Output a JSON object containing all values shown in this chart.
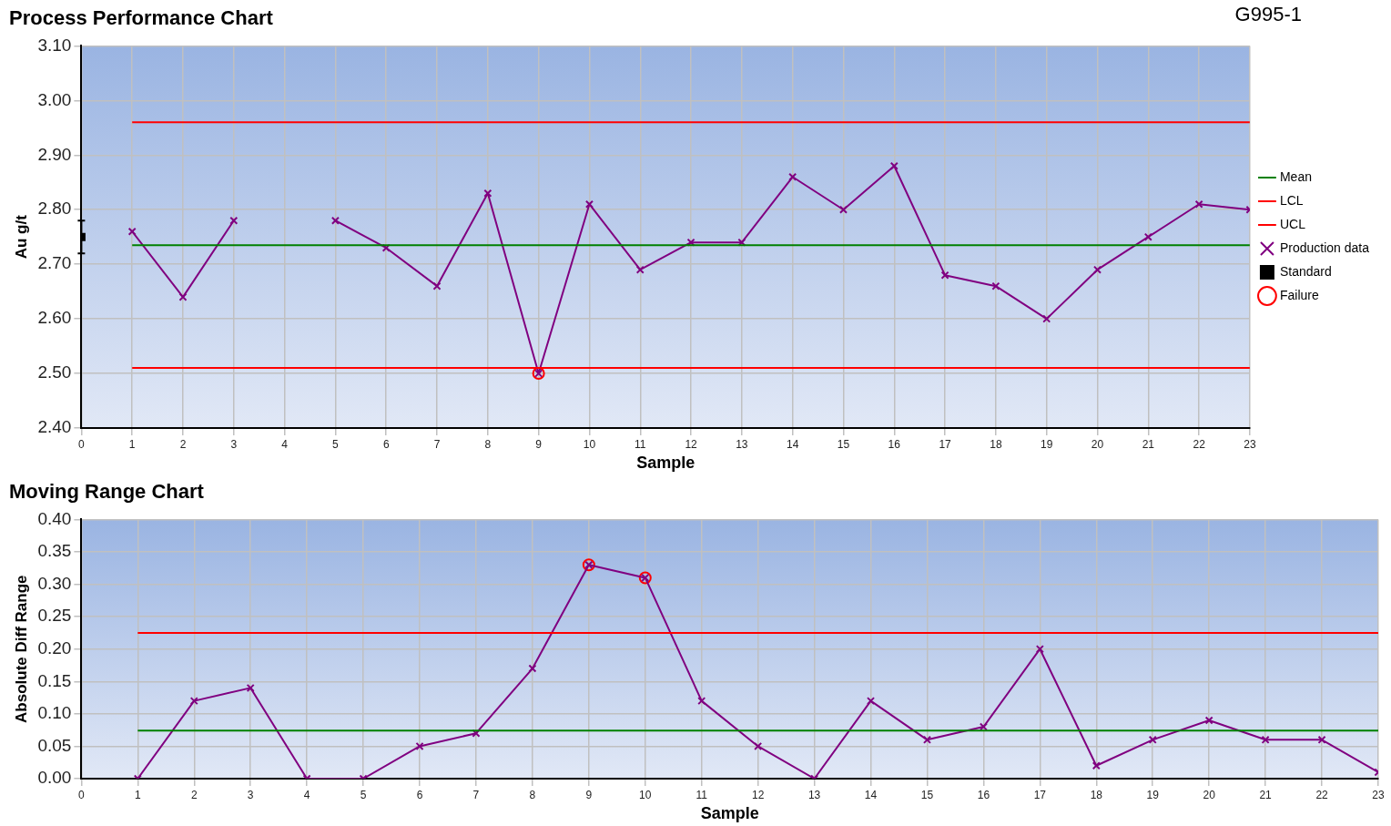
{
  "chart_data": [
    {
      "type": "line",
      "title": "Process Performance Chart",
      "annotations": [
        "G995-1"
      ],
      "xlabel": "Sample",
      "ylabel": "Au g/t",
      "xlim": [
        0,
        23
      ],
      "xticks": [
        0,
        1,
        2,
        3,
        4,
        5,
        6,
        7,
        8,
        9,
        10,
        11,
        12,
        13,
        14,
        15,
        16,
        17,
        18,
        19,
        20,
        21,
        22,
        23
      ],
      "ylim": [
        2.4,
        3.1
      ],
      "yticks": [
        {
          "value": 2.4,
          "label": "2.40"
        },
        {
          "value": 2.5,
          "label": "2.50"
        },
        {
          "value": 2.6,
          "label": "2.60"
        },
        {
          "value": 2.7,
          "label": "2.70"
        },
        {
          "value": 2.8,
          "label": "2.80"
        },
        {
          "value": 2.9,
          "label": "2.90"
        },
        {
          "value": 3.0,
          "label": "3.00"
        },
        {
          "value": 3.1,
          "label": "3.10"
        }
      ],
      "grid": true,
      "legend": "right",
      "series": [
        {
          "name": "Mean",
          "type": "line",
          "color": "#008000",
          "marker": "none",
          "x": [
            1,
            23
          ],
          "values": [
            2.735,
            2.735
          ]
        },
        {
          "name": "LCL",
          "type": "line",
          "color": "#ff0000",
          "marker": "none",
          "x": [
            1,
            23
          ],
          "values": [
            2.51,
            2.51
          ]
        },
        {
          "name": "UCL",
          "type": "line",
          "color": "#ff0000",
          "marker": "none",
          "x": [
            1,
            23
          ],
          "values": [
            2.96,
            2.96
          ]
        },
        {
          "name": "Production data",
          "type": "line",
          "color": "#800080",
          "marker": "cross",
          "x": [
            1,
            2,
            3,
            4,
            5,
            6,
            7,
            8,
            9,
            10,
            11,
            12,
            13,
            14,
            15,
            16,
            17,
            18,
            19,
            20,
            21,
            22,
            23
          ],
          "values": [
            2.76,
            2.64,
            2.78,
            null,
            2.78,
            2.73,
            2.66,
            2.83,
            2.5,
            2.81,
            2.69,
            2.74,
            2.74,
            2.86,
            2.8,
            2.88,
            2.68,
            2.66,
            2.6,
            2.69,
            2.75,
            2.81,
            2.8
          ]
        },
        {
          "name": "Standard",
          "type": "scatter",
          "color": "#000000",
          "marker": "square",
          "x": [
            0
          ],
          "values": [
            2.75
          ],
          "errors": [
            [
              2.72,
              2.78
            ]
          ]
        },
        {
          "name": "Failure",
          "type": "scatter",
          "color": "#ff0000",
          "marker": "circle",
          "x": [
            9
          ],
          "values": [
            2.5
          ]
        }
      ]
    },
    {
      "type": "line",
      "title": "Moving Range Chart",
      "xlabel": "Sample",
      "ylabel": "Absolute Diff Range",
      "xlim": [
        0,
        23
      ],
      "xticks": [
        0,
        1,
        2,
        3,
        4,
        5,
        6,
        7,
        8,
        9,
        10,
        11,
        12,
        13,
        14,
        15,
        16,
        17,
        18,
        19,
        20,
        21,
        22,
        23
      ],
      "ylim": [
        0,
        0.4
      ],
      "yticks": [
        {
          "value": 0,
          "label": "0.00"
        },
        {
          "value": 0.05,
          "label": "0.05"
        },
        {
          "value": 0.1,
          "label": "0.10"
        },
        {
          "value": 0.15,
          "label": "0.15"
        },
        {
          "value": 0.2,
          "label": "0.20"
        },
        {
          "value": 0.25,
          "label": "0.25"
        },
        {
          "value": 0.3,
          "label": "0.30"
        },
        {
          "value": 0.35,
          "label": "0.35"
        },
        {
          "value": 0.4,
          "label": "0.40"
        }
      ],
      "grid": true,
      "series": [
        {
          "type": "line",
          "color": "#008000",
          "marker": "none",
          "x": [
            1,
            23
          ],
          "values": [
            0.074,
            0.074
          ]
        },
        {
          "type": "line",
          "color": "#ff0000",
          "marker": "none",
          "x": [
            1,
            23
          ],
          "values": [
            0.225,
            0.225
          ]
        },
        {
          "type": "line",
          "color": "#800080",
          "marker": "cross",
          "x": [
            1,
            2,
            3,
            4,
            5,
            6,
            7,
            8,
            9,
            10,
            11,
            12,
            13,
            14,
            15,
            16,
            17,
            18,
            19,
            20,
            21,
            22,
            23
          ],
          "values": [
            0,
            0.12,
            0.14,
            0,
            0,
            0.05,
            0.07,
            0.17,
            0.33,
            0.31,
            0.12,
            0.05,
            0,
            0.12,
            0.06,
            0.08,
            0.2,
            0.02,
            0.06,
            0.09,
            0.06,
            0.06,
            0.01
          ]
        },
        {
          "type": "scatter",
          "color": "#ff0000",
          "marker": "circle",
          "x": [
            9,
            10
          ],
          "values": [
            0.33,
            0.31
          ]
        }
      ]
    }
  ]
}
